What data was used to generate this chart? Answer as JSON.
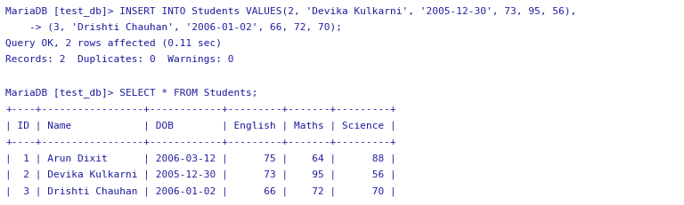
{
  "bg_color": "#ffffff",
  "text_color": "#1c1c9c",
  "font_family": "monospace",
  "fontsize": 8.0,
  "lines": [
    "MariaDB [test_db]> INSERT INTO Students VALUES(2, 'Devika Kulkarni', '2005-12-30', 73, 95, 56),",
    "    -> (3, 'Drishti Chauhan', '2006-01-02', 66, 72, 70);",
    "Query OK, 2 rows affected (0.11 sec)",
    "Records: 2  Duplicates: 0  Warnings: 0",
    "",
    "MariaDB [test_db]> SELECT * FROM Students;",
    "+----+-----------------+------------+---------+-------+---------+",
    "| ID | Name            | DOB        | English | Maths | Science |",
    "+----+-----------------+------------+---------+-------+---------+",
    "|  1 | Arun Dixit      | 2006-03-12 |      75 |    64 |      88 |",
    "|  2 | Devika Kulkarni | 2005-12-30 |      73 |    95 |      56 |",
    "|  3 | Drishti Chauhan | 2006-01-02 |      66 |    72 |      70 |",
    "+----+-----------------+------------+---------+-------+---------+"
  ]
}
